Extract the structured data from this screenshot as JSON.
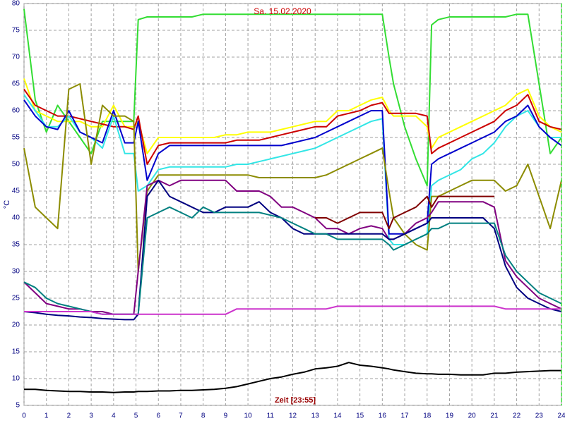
{
  "chart_data": {
    "type": "line",
    "title": "Sa. 15.02.2020",
    "x_label": "Zeit [23:55]",
    "y_label": "°C",
    "xlim": [
      0,
      24
    ],
    "ylim": [
      5,
      80
    ],
    "xticks": [
      0,
      1,
      2,
      3,
      4,
      5,
      6,
      7,
      8,
      9,
      10,
      11,
      12,
      13,
      14,
      15,
      16,
      17,
      18,
      19,
      20,
      21,
      22,
      23,
      24
    ],
    "yticks": [
      5,
      10,
      15,
      20,
      25,
      30,
      35,
      40,
      45,
      50,
      55,
      60,
      65,
      70,
      75,
      80
    ],
    "grid": true,
    "x": [
      0,
      0.5,
      1,
      1.5,
      2,
      2.5,
      3,
      3.5,
      4,
      4.5,
      4.9,
      5.1,
      5.5,
      6,
      6.5,
      7,
      7.5,
      8,
      8.5,
      9,
      9.5,
      10,
      10.5,
      11,
      11.5,
      12,
      12.5,
      13,
      13.5,
      14,
      14.5,
      15,
      15.5,
      16,
      16.3,
      16.5,
      17,
      17.5,
      18,
      18.2,
      18.5,
      19,
      19.5,
      20,
      20.5,
      21,
      21.5,
      22,
      22.5,
      23,
      23.5,
      24
    ],
    "series": [
      {
        "color": "#33dd33",
        "values": [
          79,
          62,
          56,
          61,
          58,
          55,
          52,
          58,
          58,
          58,
          58,
          77,
          77.5,
          77.5,
          77.5,
          77.5,
          77.5,
          78,
          78,
          78,
          78,
          78,
          78,
          78,
          78,
          78,
          78,
          78,
          78,
          78,
          78,
          78,
          78,
          78,
          70,
          65,
          57,
          51,
          46,
          76,
          77,
          77.5,
          77.5,
          77.5,
          77.5,
          77.5,
          77.5,
          78,
          78,
          65,
          52,
          55
        ]
      },
      {
        "color": "#ffff00",
        "values": [
          66,
          60,
          59,
          58,
          58,
          58,
          57,
          57,
          61,
          57,
          57,
          58,
          52,
          55,
          55,
          55,
          55,
          55,
          55,
          55.5,
          55.5,
          56,
          56,
          56,
          56.5,
          57,
          57.5,
          58,
          58,
          60,
          60,
          61,
          62,
          62.5,
          60,
          59,
          59,
          59,
          57,
          53,
          55,
          56,
          57,
          58,
          59,
          60,
          61,
          63,
          64,
          59,
          57,
          56
        ]
      },
      {
        "color": "#cc0000",
        "values": [
          64,
          61,
          60,
          59,
          59,
          58.5,
          58,
          57.5,
          57,
          57,
          56.5,
          59,
          50,
          53.5,
          54,
          54,
          54,
          54,
          54,
          54,
          54.5,
          54.5,
          54.5,
          55,
          55.5,
          56,
          56.5,
          57,
          57,
          59,
          59.5,
          60,
          61,
          61.5,
          59.5,
          59.5,
          59.5,
          59.5,
          59,
          52,
          53,
          54,
          55,
          56,
          57,
          58,
          60,
          61,
          63,
          58,
          57,
          56.5
        ]
      },
      {
        "color": "#33e6e6",
        "values": [
          63,
          60,
          57,
          57,
          59,
          56,
          55,
          53,
          59,
          52,
          52,
          45,
          46,
          49,
          49.5,
          49.5,
          49.5,
          49.5,
          49.5,
          49.5,
          50,
          50,
          50.5,
          51,
          51.5,
          52,
          52.5,
          53,
          54,
          55,
          56,
          57,
          58,
          58.5,
          36,
          35,
          35,
          36,
          37,
          46,
          47,
          48,
          49,
          51,
          52,
          54,
          57,
          59,
          60,
          57,
          55,
          55
        ]
      },
      {
        "color": "#0000cc",
        "values": [
          62,
          59,
          57,
          56.5,
          60,
          56,
          55,
          54,
          60,
          54,
          54,
          58,
          47,
          52,
          53.5,
          53.5,
          53.5,
          53.5,
          53.5,
          53.5,
          53.5,
          53.5,
          53.5,
          53.5,
          53.5,
          54,
          54.5,
          55,
          56,
          57,
          58,
          59,
          60,
          60,
          37,
          37,
          37,
          38,
          39,
          50,
          51,
          52,
          53,
          54,
          55,
          56,
          58,
          59,
          61,
          57,
          55,
          53.5
        ]
      },
      {
        "color": "#8c8c00",
        "values": [
          53,
          42,
          40,
          38,
          64,
          65,
          50,
          61,
          59,
          59,
          58,
          30,
          45,
          48,
          48,
          48,
          48,
          48,
          48,
          48,
          48,
          48,
          47.5,
          47.5,
          47.5,
          47.5,
          47.5,
          47.5,
          48,
          49,
          50,
          51,
          52,
          53,
          45,
          40,
          37,
          35,
          34,
          44,
          44,
          45,
          46,
          47,
          47,
          47,
          45,
          46,
          50,
          44,
          38,
          47
        ]
      },
      {
        "color": "#800080",
        "values": [
          28,
          26,
          24,
          23.5,
          23,
          23,
          22.5,
          22.5,
          22,
          22,
          22,
          30,
          46,
          47,
          46,
          47,
          47,
          47,
          47,
          47,
          45,
          45,
          45,
          44,
          42,
          42,
          41,
          40,
          38,
          38,
          37,
          38,
          38.5,
          38,
          36,
          36,
          37,
          39,
          40,
          41,
          43,
          43,
          43,
          43,
          43,
          42,
          32,
          29,
          27,
          25,
          24,
          23
        ]
      },
      {
        "color": "#800000",
        "values": [
          null,
          null,
          null,
          null,
          null,
          null,
          null,
          null,
          null,
          null,
          null,
          null,
          null,
          null,
          null,
          null,
          null,
          null,
          null,
          null,
          null,
          null,
          null,
          null,
          null,
          null,
          null,
          40,
          40,
          39,
          40,
          41,
          41,
          41,
          38,
          40,
          41,
          42,
          44,
          42,
          44,
          44,
          44,
          44,
          44,
          44,
          null,
          null,
          null,
          null,
          null,
          null
        ]
      },
      {
        "color": "#000080",
        "values": [
          22.5,
          22.3,
          22,
          21.8,
          21.7,
          21.5,
          21.4,
          21.2,
          21.1,
          21,
          21,
          22,
          44,
          47,
          44,
          43,
          42,
          41,
          41,
          42,
          42,
          42,
          43,
          41,
          40,
          38,
          37,
          37,
          37,
          37,
          37,
          37,
          37,
          37,
          36,
          36,
          37,
          38,
          39,
          40,
          40,
          40,
          40,
          40,
          40,
          38,
          31,
          27,
          25,
          24,
          23,
          22.5
        ]
      },
      {
        "color": "#008080",
        "values": [
          28,
          27,
          25,
          24,
          23.5,
          23,
          22.5,
          22,
          22,
          22,
          22,
          22,
          40,
          41,
          42,
          41,
          40,
          42,
          41,
          41,
          41,
          41,
          41,
          40.5,
          40,
          39,
          38,
          37,
          37,
          36,
          36,
          36,
          36,
          36,
          35,
          34,
          35,
          36,
          37,
          38,
          38,
          39,
          39,
          39,
          39,
          39,
          33,
          30,
          28,
          26,
          25,
          24
        ]
      },
      {
        "color": "#cc33cc",
        "values": [
          22.5,
          22.5,
          22.5,
          22.5,
          22.5,
          22.5,
          22.5,
          22,
          22,
          22,
          22,
          22,
          22,
          22,
          22,
          22,
          22,
          22,
          22,
          22,
          23,
          23,
          23,
          23,
          23,
          23,
          23,
          23,
          23,
          23.5,
          23.5,
          23.5,
          23.5,
          23.5,
          23.5,
          23.5,
          23.5,
          23.5,
          23.5,
          23.5,
          23.5,
          23.5,
          23.5,
          23.5,
          23.5,
          23.5,
          23,
          23,
          23,
          23,
          23,
          23
        ]
      },
      {
        "color": "#000000",
        "values": [
          8,
          8,
          7.8,
          7.7,
          7.6,
          7.6,
          7.5,
          7.5,
          7.4,
          7.5,
          7.5,
          7.6,
          7.6,
          7.7,
          7.7,
          7.8,
          7.8,
          7.9,
          8,
          8.2,
          8.5,
          9,
          9.5,
          10,
          10.3,
          10.8,
          11.2,
          11.8,
          12,
          12.3,
          13,
          12.5,
          12.3,
          12,
          11.8,
          11.6,
          11.3,
          11,
          10.9,
          10.9,
          10.8,
          10.8,
          10.7,
          10.7,
          10.7,
          11,
          11,
          11.2,
          11.3,
          11.4,
          11.5,
          11.5
        ]
      }
    ]
  }
}
